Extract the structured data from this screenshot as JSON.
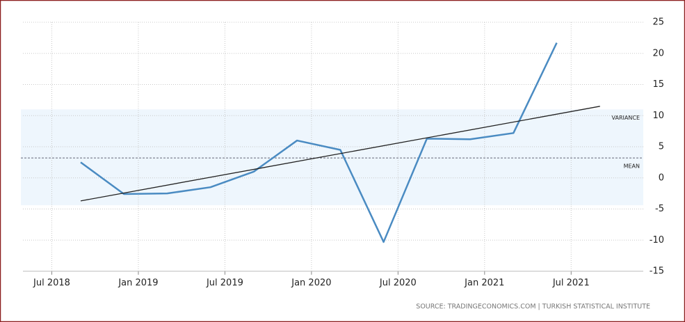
{
  "chart_data": {
    "type": "line",
    "x": [
      "2018-09",
      "2018-12",
      "2019-03",
      "2019-06",
      "2019-09",
      "2019-12",
      "2020-03",
      "2020-06",
      "2020-09",
      "2020-12",
      "2021-03",
      "2021-06"
    ],
    "series": [
      {
        "color": "#4a8bc2",
        "values": [
          2.5,
          -2.6,
          -2.5,
          -1.5,
          1.0,
          6.0,
          4.5,
          -10.3,
          6.3,
          6.2,
          7.2,
          21.7
        ]
      }
    ],
    "trend": {
      "color": "#222222",
      "x": [
        "2018-09",
        "2021-09"
      ],
      "values": [
        -3.7,
        11.5
      ]
    },
    "mean": 3.2,
    "mean_label": "MEAN",
    "variance_band": [
      -4.4,
      11.0
    ],
    "variance_label": "VARIANCE",
    "xlim": [
      "2018-05",
      "2021-12"
    ],
    "xticks": [
      {
        "value": "2018-07",
        "label": "Jul 2018"
      },
      {
        "value": "2019-01",
        "label": "Jan 2019"
      },
      {
        "value": "2019-07",
        "label": "Jul 2019"
      },
      {
        "value": "2020-01",
        "label": "Jan 2020"
      },
      {
        "value": "2020-07",
        "label": "Jul 2020"
      },
      {
        "value": "2021-01",
        "label": "Jan 2021"
      },
      {
        "value": "2021-07",
        "label": "Jul 2021"
      }
    ],
    "ylim": [
      -15,
      25
    ],
    "yticks": [
      25,
      20,
      15,
      10,
      5,
      0,
      -5,
      -10,
      -15
    ],
    "grid": true,
    "source": "SOURCE: TRADINGECONOMICS.COM  |  TURKISH STATISTICAL INSTITUTE"
  }
}
